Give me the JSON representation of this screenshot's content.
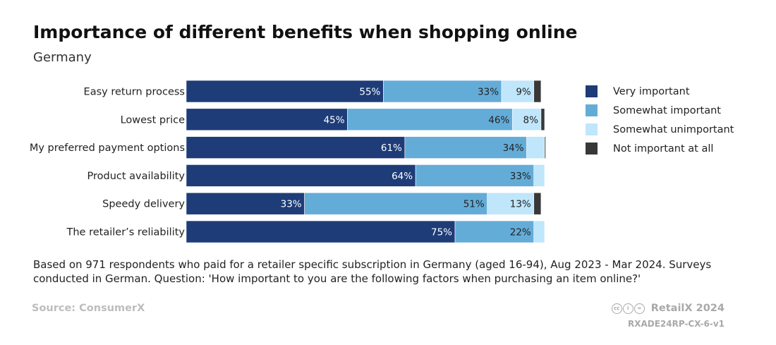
{
  "header": {
    "title": "Importance of different benefits when shopping online",
    "subtitle": "Germany"
  },
  "chart_data": {
    "type": "bar",
    "orientation": "horizontal",
    "stacked": true,
    "categories": [
      "Easy return process",
      "Lowest price",
      "My preferred payment options",
      "Product availability",
      "Speedy delivery",
      "The retailer’s reliability"
    ],
    "series": [
      {
        "name": "Very important",
        "color": "#1d3c78",
        "values": [
          55,
          45,
          61,
          64,
          33,
          75
        ],
        "labels": [
          "55%",
          "45%",
          "61%",
          "64%",
          "33%",
          "75%"
        ]
      },
      {
        "name": "Somewhat important",
        "color": "#64acd8",
        "values": [
          33,
          46,
          34,
          33,
          51,
          22
        ],
        "labels": [
          "33%",
          "46%",
          "34%",
          "33%",
          "51%",
          "22%"
        ]
      },
      {
        "name": "Somewhat unimportant",
        "color": "#bfe6fb",
        "values": [
          9,
          8,
          5,
          3,
          13,
          3
        ],
        "labels": [
          "9%",
          "8%",
          "",
          "",
          "13%",
          ""
        ]
      },
      {
        "name": "Not important at all",
        "color": "#383838",
        "values": [
          2,
          1,
          0.3,
          0,
          2,
          0
        ],
        "labels": [
          "",
          "",
          "",
          "",
          "",
          ""
        ]
      }
    ],
    "xlim": [
      0,
      100
    ],
    "grid": false,
    "legend_position": "right"
  },
  "footnote": "Based on 971 respondents who paid for a retailer specific subscription in Germany (aged 16-94), Aug 2023 - Mar 2024. Surveys conducted in German. Question: 'How important to you are the following factors when purchasing an item online?'",
  "footer": {
    "source": "Source: ConsumerX",
    "brand": "RetailX 2024",
    "code": "RXADE24RP-CX-6-v1",
    "license_icons": [
      "cc",
      "by",
      "nd"
    ]
  }
}
